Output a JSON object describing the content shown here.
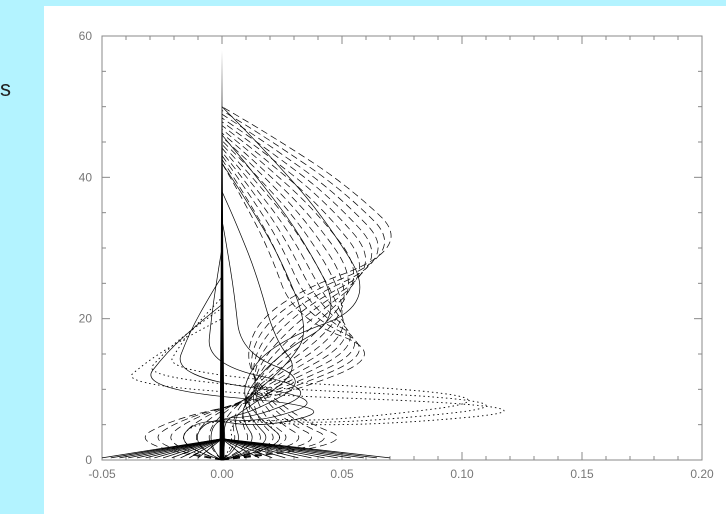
{
  "colors": {
    "background_strip": "#b3f3ff",
    "axis": "#888888",
    "curves": "#000000"
  },
  "left_caption": "s",
  "chart_data": {
    "type": "line",
    "title": "",
    "xlabel": "",
    "ylabel": "",
    "xlim": [
      -0.05,
      0.2
    ],
    "ylim": [
      0,
      60
    ],
    "x_ticks": [
      -0.05,
      0.0,
      0.05,
      0.1,
      0.15,
      0.2
    ],
    "x_tick_labels": [
      "-0.05",
      "0.00",
      "0.05",
      "0.10",
      "0.15",
      "0.20"
    ],
    "y_ticks": [
      0,
      20,
      40,
      60
    ],
    "y_tick_labels": [
      "0",
      "20",
      "40",
      "60"
    ],
    "grid": false,
    "legend": "none",
    "families": [
      {
        "style": "dashed",
        "count": 16,
        "peak_altitude": [
          20,
          30
        ],
        "peak_value": [
          0.03,
          0.08
        ],
        "upper_altitude": [
          42,
          50
        ],
        "tail_value": [
          0.02,
          0.07
        ]
      },
      {
        "style": "solid",
        "count": 8,
        "peak_altitude": [
          10,
          22
        ],
        "peak_value": [
          -0.035,
          0.065
        ],
        "upper_altitude": [
          22,
          50
        ],
        "tail_value": [
          0.02,
          0.05
        ]
      },
      {
        "style": "dotted",
        "count": 3,
        "peak_altitude": [
          10,
          12
        ],
        "peak_value": [
          -0.045,
          -0.025
        ],
        "upper_altitude": [
          20,
          23
        ],
        "tail_value": [
          0.13,
          0.15
        ]
      }
    ],
    "center_spike": {
      "x": 0.0,
      "top": 58
    },
    "base_fan": {
      "altitude": [
        0,
        3
      ],
      "x_range": [
        -0.05,
        0.07
      ]
    }
  }
}
